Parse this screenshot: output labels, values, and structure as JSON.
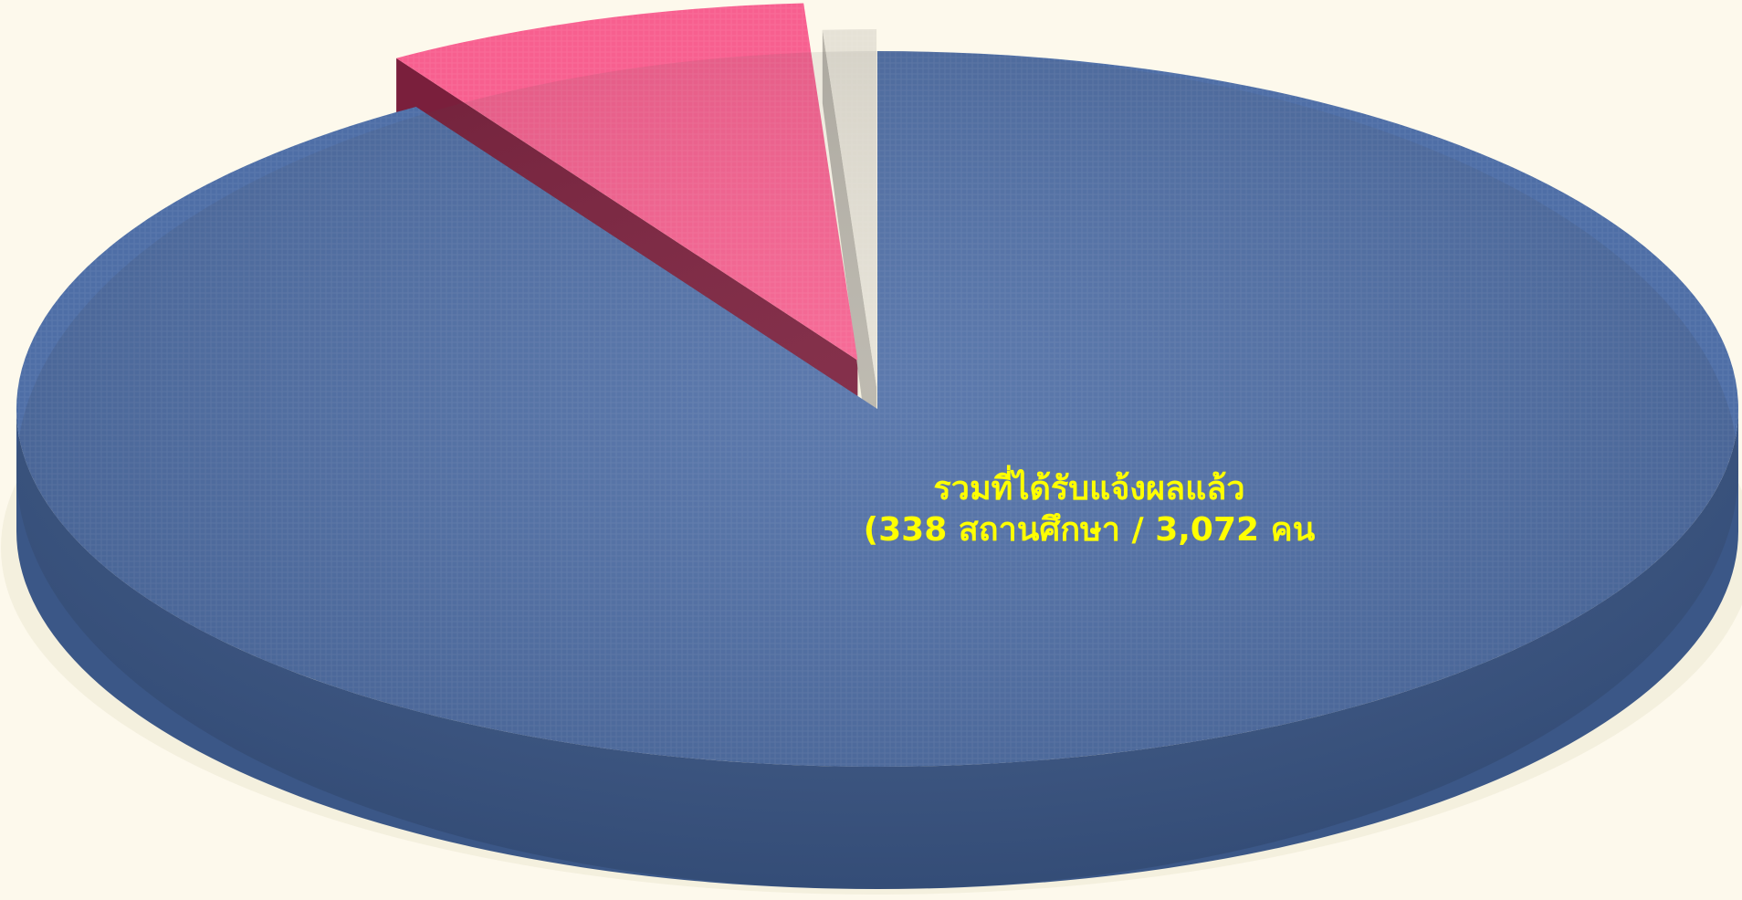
{
  "chart_data": {
    "type": "pie",
    "categories": [
      "รวมที่ได้รับแจ้งผลแล้ว",
      null,
      null
    ],
    "annotations": [
      "(338 สถานศึกษา / 3,072 คน"
    ],
    "values": [
      91,
      8,
      1
    ],
    "colors": [
      "#4e6ea6",
      "#f75f8f",
      "#e6e2d6"
    ],
    "side_colors": [
      "#3b5787",
      "#7a1f3c",
      "#b8b4aa"
    ],
    "label_color": "#ffff00",
    "explode": [
      0,
      70,
      30
    ]
  }
}
